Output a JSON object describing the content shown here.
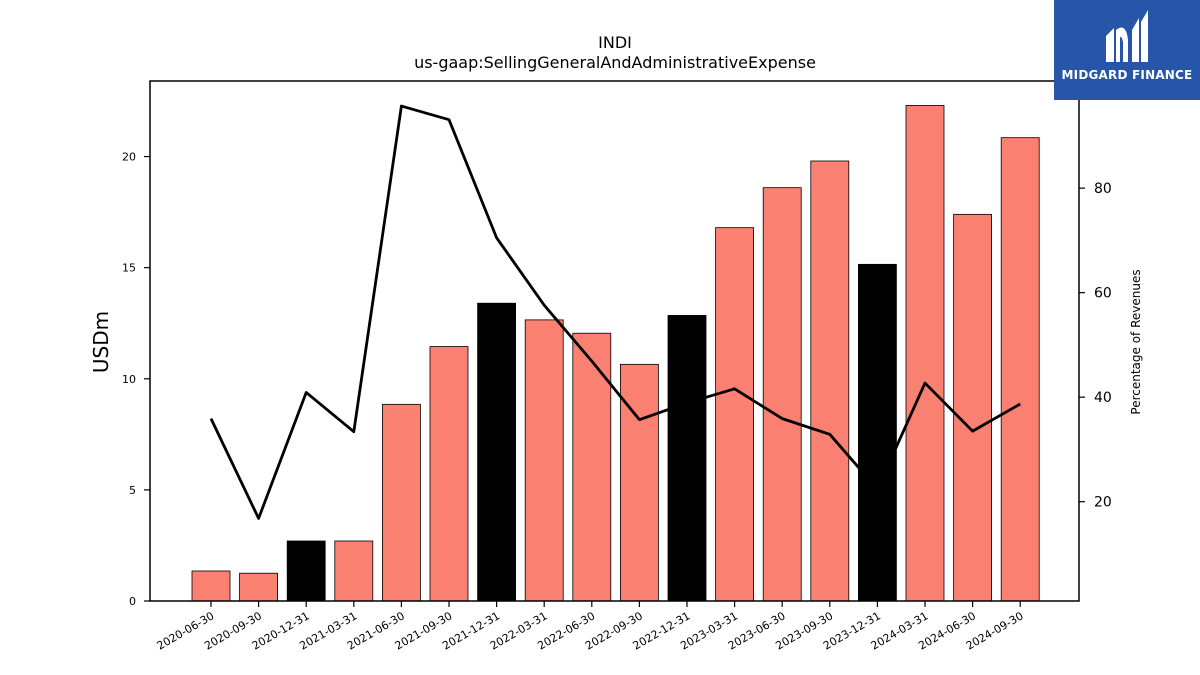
{
  "chart_data": {
    "type": "bar",
    "title": "INDI",
    "subtitle": "us-gaap:SellingGeneralAndAdministrativeExpense",
    "ylabel": "USDm",
    "y2label": "Percentage of Revenues",
    "categories": [
      "2020-06-30",
      "2020-09-30",
      "2020-12-31",
      "2021-03-31",
      "2021-06-30",
      "2021-09-30",
      "2021-12-31",
      "2022-03-31",
      "2022-06-30",
      "2022-09-30",
      "2022-12-31",
      "2023-03-31",
      "2023-06-30",
      "2023-09-30",
      "2023-12-31",
      "2024-03-31",
      "2024-06-30",
      "2024-09-30"
    ],
    "series": [
      {
        "type": "bar",
        "values": [
          1.35,
          1.25,
          2.7,
          2.7,
          8.85,
          11.45,
          13.4,
          12.65,
          12.05,
          10.65,
          12.85,
          16.8,
          18.6,
          19.8,
          15.15,
          22.3,
          17.4,
          20.85
        ],
        "colors": [
          "#fa8072",
          "#fa8072",
          "#000000",
          "#fa8072",
          "#fa8072",
          "#fa8072",
          "#000000",
          "#fa8072",
          "#fa8072",
          "#fa8072",
          "#000000",
          "#fa8072",
          "#fa8072",
          "#fa8072",
          "#000000",
          "#fa8072",
          "#fa8072",
          "#fa8072"
        ]
      },
      {
        "type": "line",
        "axis": "right",
        "values": [
          35.9,
          16.8,
          40.9,
          33.4,
          95.7,
          93.1,
          70.5,
          57.6,
          46.9,
          35.7,
          38.9,
          41.6,
          35.9,
          32.9,
          22.4,
          42.7,
          33.5,
          38.7
        ],
        "color": "#000000"
      }
    ],
    "ylim": [
      0,
      23.4
    ],
    "yticks": [
      0,
      5,
      10,
      15,
      20
    ],
    "y2lim": [
      1,
      100.5
    ],
    "y2ticks": [
      20,
      40,
      60,
      80
    ],
    "grid": false,
    "colors": {
      "bar": "#fa8072",
      "bar_highlight": "#000000",
      "line": "#000000"
    }
  },
  "logo": {
    "brand": "MIDGARD FINANCE"
  }
}
